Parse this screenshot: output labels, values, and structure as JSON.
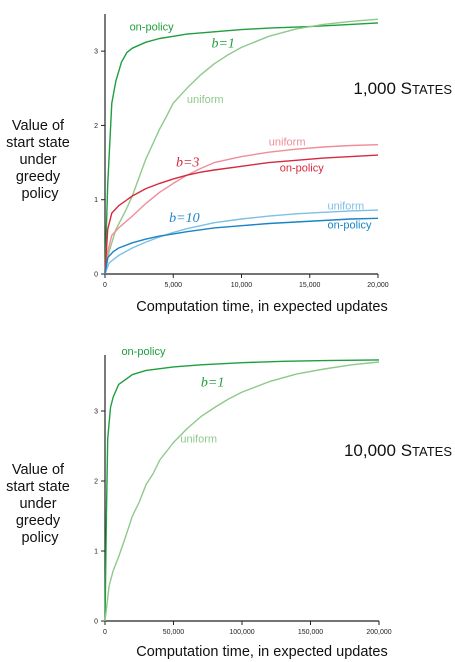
{
  "colors": {
    "on_policy_b1": "#1e9e3e",
    "uniform_b1": "#8fc98a",
    "on_policy_b3": "#d42a3c",
    "uniform_b3": "#ef8d98",
    "on_policy_b10": "#1a84c6",
    "uniform_b10": "#7dbfe6"
  },
  "chart_data": [
    {
      "type": "line",
      "panel_label": "1,000 STATES",
      "panel_label_main": "1,000 S",
      "panel_label_small": "TATES",
      "ylabel_lines": [
        "Value of",
        "start state",
        "under",
        "greedy",
        "policy"
      ],
      "xlabel": "Computation time, in expected updates",
      "xlim": [
        0,
        20000
      ],
      "ylim": [
        0,
        3.5
      ],
      "xticks": [
        0,
        5000,
        10000,
        15000,
        20000
      ],
      "xtick_labels": [
        "0",
        "5,000",
        "10,000",
        "15,000",
        "20,000"
      ],
      "yticks": [
        0,
        1,
        2,
        3
      ],
      "ytick_labels": [
        "0",
        "1",
        "2",
        "3"
      ],
      "branch_labels": [
        {
          "text": "b=1",
          "x": 7800,
          "y": 3.05,
          "color": "#1e9e3e"
        },
        {
          "text": "b=3",
          "x": 5200,
          "y": 1.45,
          "color": "#d42a3c"
        },
        {
          "text": "b=10",
          "x": 4700,
          "y": 0.7,
          "color": "#1a84c6"
        }
      ],
      "series": [
        {
          "name": "on-policy",
          "branching": 1,
          "color": "#1e9e3e",
          "label_pos": {
            "x": 1800,
            "y": 3.28
          },
          "x": [
            0,
            200,
            500,
            800,
            1200,
            1600,
            2000,
            3000,
            4000,
            5000,
            6000,
            8000,
            10000,
            12000,
            15000,
            18000,
            20000
          ],
          "y": [
            0,
            1.2,
            2.3,
            2.6,
            2.85,
            2.98,
            3.04,
            3.12,
            3.17,
            3.2,
            3.23,
            3.26,
            3.29,
            3.31,
            3.33,
            3.36,
            3.38
          ]
        },
        {
          "name": "uniform",
          "branching": 1,
          "color": "#8fc98a",
          "label_pos": {
            "x": 6000,
            "y": 2.3
          },
          "x": [
            0,
            300,
            800,
            1500,
            2000,
            2500,
            3000,
            3500,
            4000,
            4500,
            5000,
            6000,
            7000,
            8000,
            9000,
            10000,
            12000,
            14000,
            16000,
            18000,
            20000
          ],
          "y": [
            0,
            0.3,
            0.6,
            0.85,
            1.05,
            1.3,
            1.55,
            1.75,
            1.95,
            2.12,
            2.3,
            2.5,
            2.68,
            2.83,
            2.95,
            3.05,
            3.2,
            3.3,
            3.36,
            3.4,
            3.43
          ]
        },
        {
          "name": "uniform",
          "branching": 3,
          "color": "#ef8d98",
          "label_pos": {
            "x": 12000,
            "y": 1.73
          },
          "x": [
            0,
            200,
            500,
            1000,
            2000,
            3000,
            4000,
            5000,
            6000,
            7000,
            8000,
            10000,
            12000,
            14000,
            16000,
            18000,
            20000
          ],
          "y": [
            0,
            0.3,
            0.52,
            0.62,
            0.78,
            0.95,
            1.1,
            1.22,
            1.33,
            1.42,
            1.5,
            1.58,
            1.64,
            1.68,
            1.71,
            1.73,
            1.74
          ]
        },
        {
          "name": "on-policy",
          "branching": 3,
          "color": "#d42a3c",
          "label_pos": {
            "x": 12800,
            "y": 1.38
          },
          "x": [
            0,
            200,
            500,
            1000,
            2000,
            3000,
            4000,
            5000,
            6000,
            7000,
            8000,
            10000,
            12000,
            14000,
            16000,
            18000,
            20000
          ],
          "y": [
            0,
            0.6,
            0.82,
            0.92,
            1.05,
            1.15,
            1.22,
            1.28,
            1.33,
            1.37,
            1.4,
            1.45,
            1.5,
            1.53,
            1.56,
            1.58,
            1.6
          ]
        },
        {
          "name": "uniform",
          "branching": 10,
          "color": "#7dbfe6",
          "label_pos": {
            "x": 16300,
            "y": 0.87
          },
          "x": [
            0,
            300,
            1000,
            2000,
            3000,
            4000,
            5000,
            6000,
            7000,
            8000,
            10000,
            12000,
            14000,
            16000,
            18000,
            20000
          ],
          "y": [
            0,
            0.15,
            0.25,
            0.35,
            0.43,
            0.5,
            0.56,
            0.61,
            0.65,
            0.69,
            0.74,
            0.78,
            0.81,
            0.83,
            0.85,
            0.86
          ]
        },
        {
          "name": "on-policy",
          "branching": 10,
          "color": "#1a84c6",
          "label_pos": {
            "x": 16300,
            "y": 0.61
          },
          "x": [
            0,
            200,
            600,
            1000,
            2000,
            3000,
            4000,
            5000,
            6000,
            8000,
            10000,
            12000,
            14000,
            16000,
            18000,
            20000
          ],
          "y": [
            0,
            0.22,
            0.3,
            0.35,
            0.42,
            0.47,
            0.51,
            0.54,
            0.57,
            0.62,
            0.65,
            0.68,
            0.7,
            0.72,
            0.74,
            0.75
          ]
        }
      ]
    },
    {
      "type": "line",
      "panel_label": "10,000 STATES",
      "panel_label_main": "10,000 S",
      "panel_label_small": "TATES",
      "ylabel_lines": [
        "Value of",
        "start state",
        "under",
        "greedy",
        "policy"
      ],
      "xlabel": "Computation time, in expected updates",
      "xlim": [
        0,
        200000
      ],
      "ylim": [
        0,
        3.8
      ],
      "xticks": [
        0,
        50000,
        100000,
        150000,
        200000
      ],
      "xtick_labels": [
        "0",
        "50,000",
        "100,000",
        "150,000",
        "200,000"
      ],
      "yticks": [
        0,
        1,
        2,
        3
      ],
      "ytick_labels": [
        "0",
        "1",
        "2",
        "3"
      ],
      "branch_labels": [
        {
          "text": "b=1",
          "x": 70000,
          "y": 3.35,
          "color": "#1e9e3e"
        }
      ],
      "series": [
        {
          "name": "on-policy",
          "branching": 1,
          "color": "#1e9e3e",
          "label_pos": {
            "x": 12000,
            "y": 3.8
          },
          "x": [
            0,
            1000,
            2000,
            4000,
            6000,
            10000,
            20000,
            30000,
            50000,
            70000,
            100000,
            130000,
            160000,
            200000
          ],
          "y": [
            0,
            1.5,
            2.6,
            3.05,
            3.2,
            3.38,
            3.52,
            3.58,
            3.63,
            3.66,
            3.69,
            3.71,
            3.72,
            3.73
          ]
        },
        {
          "name": "uniform",
          "branching": 1,
          "color": "#8fc98a",
          "label_pos": {
            "x": 55000,
            "y": 2.55
          },
          "x": [
            0,
            3000,
            6000,
            10000,
            15000,
            20000,
            25000,
            30000,
            35000,
            40000,
            50000,
            60000,
            70000,
            80000,
            90000,
            100000,
            120000,
            140000,
            160000,
            180000,
            200000
          ],
          "y": [
            0,
            0.5,
            0.72,
            0.92,
            1.2,
            1.5,
            1.7,
            1.95,
            2.1,
            2.3,
            2.55,
            2.75,
            2.92,
            3.05,
            3.17,
            3.27,
            3.42,
            3.53,
            3.6,
            3.66,
            3.7
          ]
        }
      ]
    }
  ]
}
